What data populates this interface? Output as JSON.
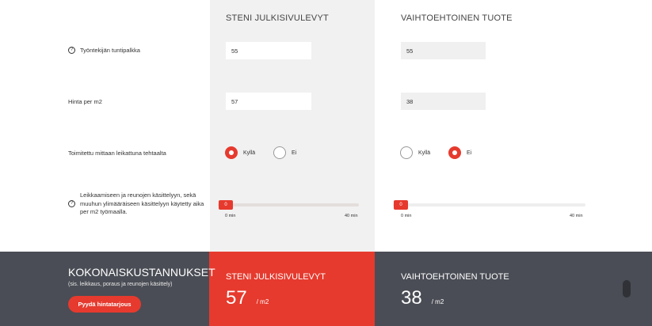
{
  "columns": {
    "steni": "STENI JULKISIVULEVYT",
    "alt": "VAIHTOEHTOINEN TUOTE"
  },
  "rows": {
    "wage": {
      "label": "Työntekijän tuntipalkka",
      "steni_value": "55",
      "alt_value": "55"
    },
    "price": {
      "label": "Hinta per m2",
      "steni_value": "57",
      "alt_value": "38"
    },
    "cut": {
      "label": "Toimitettu mittaan leikattuna tehtaalta",
      "yes": "Kyllä",
      "no": "Ei",
      "steni_selected": "yes",
      "alt_selected": "no"
    },
    "labor": {
      "label": "Leikkaamiseen ja reunojen käsittelyyn, sekä muuhun ylimääräiseen käsittelyyn käytetty aika per m2 työmaalla.",
      "min_label": "0 min",
      "max_label": "40 min",
      "steni_value": "0",
      "alt_value": "0"
    }
  },
  "footer": {
    "title": "KOKONAISKUSTANNUKSET",
    "subtitle": "(sis. leikkaus, poraus ja reunojen käsittely)",
    "button": "Pyydä hintatarjous",
    "steni_total": "57",
    "alt_total": "38",
    "unit": "/ m2"
  },
  "icons": {
    "help": "help-circle-icon"
  },
  "colors": {
    "accent": "#e63a2e",
    "footer_bg": "#4a4d55"
  }
}
